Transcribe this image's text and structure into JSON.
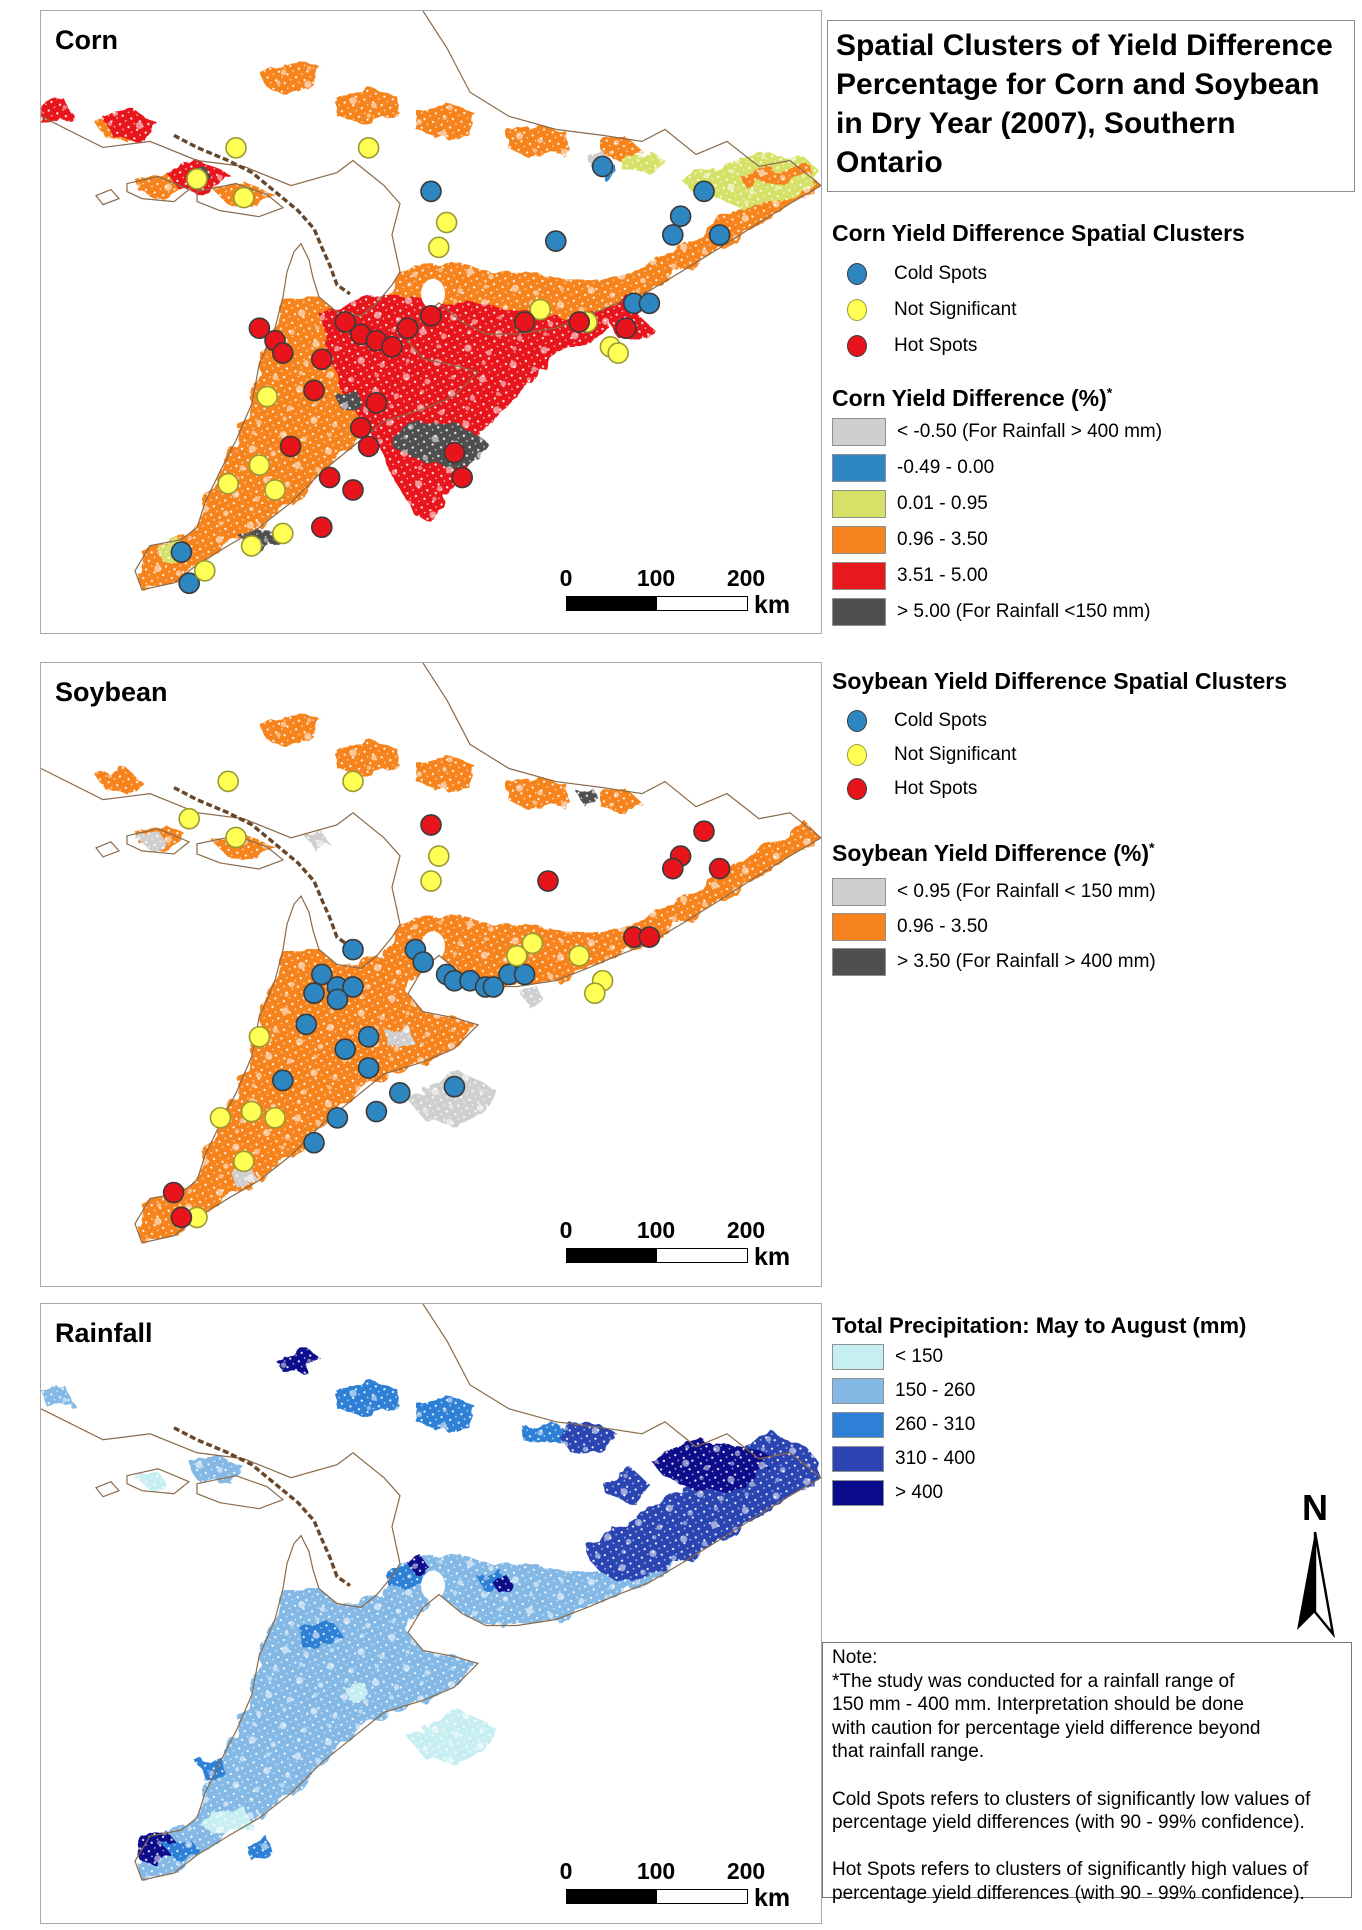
{
  "title": "Spatial Clusters of Yield Difference Percentage for Corn and Soybean in Dry Year (2007), Southern Ontario",
  "cluster_colors": {
    "cold": "#2e86c0",
    "not_significant": "#ffff55",
    "hot": "#e8141b"
  },
  "cluster_strokes": {
    "cold": "#3a3a3a",
    "not_significant": "#9a9a35",
    "hot": "#3a3a3a"
  },
  "legends": {
    "corn_clusters": {
      "title": "Corn Yield Difference Spatial Clusters",
      "items": [
        {
          "label": "Cold Spots",
          "type": "cold"
        },
        {
          "label": "Not Significant",
          "type": "not_significant"
        },
        {
          "label": "Hot Spots",
          "type": "hot"
        }
      ]
    },
    "corn_classes": {
      "title": "Corn Yield Difference (%)",
      "title_sup": "*",
      "items": [
        {
          "label": "< -0.50 (For Rainfall > 400 mm)",
          "color": "#cfcfcf"
        },
        {
          "label": "-0.49 - 0.00",
          "color": "#2e86c0"
        },
        {
          "label": "0.01 - 0.95",
          "color": "#d6e167"
        },
        {
          "label": "0.96 - 3.50",
          "color": "#f6831d"
        },
        {
          "label": "3.51 - 5.00",
          "color": "#e8191c"
        },
        {
          "label": "> 5.00 (For Rainfall <150 mm)",
          "color": "#4f4f4f"
        }
      ]
    },
    "soybean_clusters": {
      "title": "Soybean Yield Difference Spatial Clusters",
      "items": [
        {
          "label": "Cold Spots",
          "type": "cold"
        },
        {
          "label": "Not Significant",
          "type": "not_significant"
        },
        {
          "label": "Hot Spots",
          "type": "hot"
        }
      ]
    },
    "soybean_classes": {
      "title": "Soybean Yield Difference (%)",
      "title_sup": "*",
      "items": [
        {
          "label": "< 0.95 (For Rainfall < 150 mm)",
          "color": "#cfcfcf"
        },
        {
          "label": "0.96 - 3.50",
          "color": "#f6831d"
        },
        {
          "label": "> 3.50 (For Rainfall > 400 mm)",
          "color": "#4f4f4f"
        }
      ]
    },
    "precipitation": {
      "title": "Total Precipitation: May to August (mm)",
      "items": [
        {
          "label": "< 150",
          "color": "#c7eef0"
        },
        {
          "label": "150 - 260",
          "color": "#84b9e6"
        },
        {
          "label": "260 - 310",
          "color": "#2e80d6"
        },
        {
          "label": "310 - 400",
          "color": "#2c45b2"
        },
        {
          "label": "> 400",
          "color": "#0a0a8c"
        }
      ]
    }
  },
  "maps": {
    "corn": {
      "label": "Corn",
      "dots": {
        "cold": [
          [
            50,
            29
          ],
          [
            66,
            37
          ],
          [
            85,
            29
          ],
          [
            82,
            33
          ],
          [
            81,
            36
          ],
          [
            87,
            36
          ],
          [
            76,
            47
          ],
          [
            78,
            47
          ],
          [
            72,
            25
          ],
          [
            18,
            87
          ],
          [
            19,
            92
          ]
        ],
        "not_significant": [
          [
            25,
            22
          ],
          [
            42,
            22
          ],
          [
            20,
            27
          ],
          [
            26,
            30
          ],
          [
            52,
            34
          ],
          [
            51,
            38
          ],
          [
            64,
            48
          ],
          [
            62,
            50
          ],
          [
            70,
            50
          ],
          [
            73,
            54
          ],
          [
            74,
            55
          ],
          [
            29,
            62
          ],
          [
            28,
            73
          ],
          [
            24,
            76
          ],
          [
            30,
            77
          ],
          [
            31,
            84
          ],
          [
            27,
            86
          ],
          [
            21,
            90
          ]
        ],
        "hot": [
          [
            28,
            51
          ],
          [
            30,
            53
          ],
          [
            31,
            55
          ],
          [
            36,
            56
          ],
          [
            39,
            50
          ],
          [
            41,
            52
          ],
          [
            43,
            53
          ],
          [
            45,
            54
          ],
          [
            47,
            51
          ],
          [
            50,
            49
          ],
          [
            62,
            50
          ],
          [
            69,
            50
          ],
          [
            75,
            51
          ],
          [
            35,
            61
          ],
          [
            43,
            63
          ],
          [
            41,
            67
          ],
          [
            32,
            70
          ],
          [
            42,
            70
          ],
          [
            37,
            75
          ],
          [
            40,
            77
          ],
          [
            53,
            71
          ],
          [
            54,
            75
          ],
          [
            36,
            83
          ]
        ]
      }
    },
    "soybean": {
      "label": "Soybean",
      "dots": {
        "cold": [
          [
            40,
            46
          ],
          [
            48,
            46
          ],
          [
            49,
            48
          ],
          [
            36,
            50
          ],
          [
            38,
            52
          ],
          [
            40,
            52
          ],
          [
            52,
            50
          ],
          [
            53,
            51
          ],
          [
            55,
            51
          ],
          [
            57,
            52
          ],
          [
            60,
            50
          ],
          [
            62,
            50
          ],
          [
            58,
            52
          ],
          [
            35,
            53
          ],
          [
            38,
            54
          ],
          [
            34,
            58
          ],
          [
            42,
            60
          ],
          [
            39,
            62
          ],
          [
            42,
            65
          ],
          [
            31,
            67
          ],
          [
            46,
            69
          ],
          [
            43,
            72
          ],
          [
            38,
            73
          ],
          [
            35,
            77
          ],
          [
            53,
            68
          ]
        ],
        "not_significant": [
          [
            24,
            19
          ],
          [
            40,
            19
          ],
          [
            19,
            25
          ],
          [
            25,
            28
          ],
          [
            51,
            31
          ],
          [
            50,
            35
          ],
          [
            63,
            45
          ],
          [
            61,
            47
          ],
          [
            69,
            47
          ],
          [
            72,
            51
          ],
          [
            71,
            53
          ],
          [
            28,
            60
          ],
          [
            27,
            72
          ],
          [
            23,
            73
          ],
          [
            30,
            73
          ],
          [
            26,
            80
          ],
          [
            20,
            89
          ]
        ],
        "hot": [
          [
            50,
            26
          ],
          [
            65,
            35
          ],
          [
            85,
            27
          ],
          [
            82,
            31
          ],
          [
            81,
            33
          ],
          [
            87,
            33
          ],
          [
            76,
            44
          ],
          [
            78,
            44
          ],
          [
            17,
            85
          ],
          [
            18,
            89
          ]
        ]
      }
    },
    "rainfall": {
      "label": "Rainfall",
      "dots": {
        "cold": [],
        "not_significant": [],
        "hot": []
      }
    }
  },
  "scalebar": {
    "ticks": [
      "0",
      "100",
      "200"
    ],
    "unit": "km"
  },
  "north_arrow_label": "N",
  "note": {
    "lines": [
      "Note:",
      "*The study was conducted for a rainfall range of",
      "150 mm - 400 mm. Interpretation should be done",
      "with caution for percentage yield difference beyond",
      "that rainfall range.",
      "",
      "Cold Spots refers to clusters of significantly low values of",
      "percentage yield differences (with 90 - 99% confidence).",
      "",
      "Hot Spots refers to clusters of significantly high values of",
      "percentage yield differences (with 90 - 99% confidence)."
    ]
  }
}
